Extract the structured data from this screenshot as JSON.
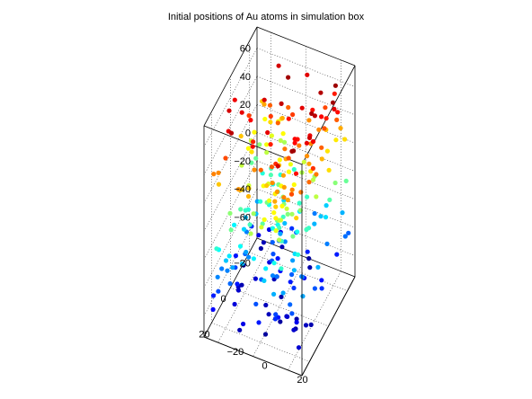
{
  "chart_data": {
    "type": "scatter3d",
    "title": "Initial positions of Au atoms in simulation box",
    "xlabel": "",
    "ylabel": "",
    "zlabel": "",
    "xlim": [
      -28,
      28
    ],
    "ylim": [
      -28,
      28
    ],
    "zlim": [
      -75,
      75
    ],
    "x_ticks": [
      -20,
      0,
      20
    ],
    "y_ticks": [
      -20,
      0,
      20
    ],
    "z_ticks": [
      -60,
      -40,
      -20,
      0,
      20,
      40,
      60
    ],
    "grid": true,
    "colormap": "jet",
    "color_by": "z",
    "n_points": 300
  }
}
